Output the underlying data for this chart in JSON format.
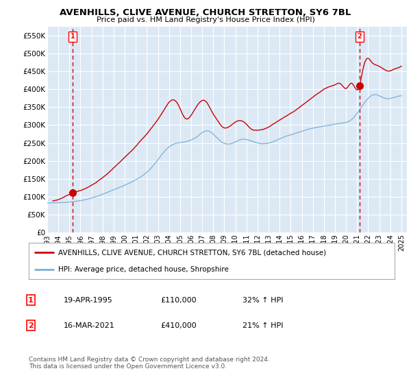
{
  "title": "AVENHILLS, CLIVE AVENUE, CHURCH STRETTON, SY6 7BL",
  "subtitle": "Price paid vs. HM Land Registry's House Price Index (HPI)",
  "ylim": [
    0,
    575000
  ],
  "xlim_start": 1993.0,
  "xlim_end": 2025.5,
  "purchase1_x": 1995.29,
  "purchase1_y": 110000,
  "purchase2_x": 2021.21,
  "purchase2_y": 410000,
  "legend_line1": "AVENHILLS, CLIVE AVENUE, CHURCH STRETTON, SY6 7BL (detached house)",
  "legend_line2": "HPI: Average price, detached house, Shropshire",
  "annotation1_num": "1",
  "annotation1_date": "19-APR-1995",
  "annotation1_price": "£110,000",
  "annotation1_hpi": "32% ↑ HPI",
  "annotation2_num": "2",
  "annotation2_date": "16-MAR-2021",
  "annotation2_price": "£410,000",
  "annotation2_hpi": "21% ↑ HPI",
  "footer": "Contains HM Land Registry data © Crown copyright and database right 2024.\nThis data is licensed under the Open Government Licence v3.0.",
  "hpi_color": "#7bafd4",
  "price_color": "#cc0000",
  "vline_color": "#cc0000",
  "bg_color": "#dce9f5",
  "grid_color": "#ffffff",
  "hatch_color": "#c8d8e8"
}
